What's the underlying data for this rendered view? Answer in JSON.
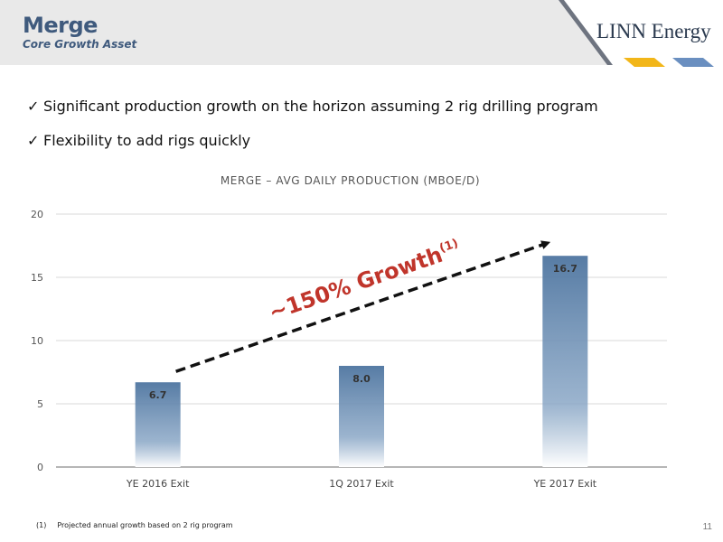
{
  "header": {
    "title": "Merge",
    "subtitle": "Core Growth Asset",
    "logo_text": "LINN Energy"
  },
  "bullets": [
    "Significant production growth on the horizon assuming 2 rig drilling program",
    "Flexibility to add rigs quickly"
  ],
  "icons": {
    "check": "✓",
    "check_name": "check-icon"
  },
  "chart_data": {
    "type": "bar",
    "title": "MERGE – AVG DAILY PRODUCTION (MBOE/D)",
    "categories": [
      "YE 2016 Exit",
      "1Q 2017 Exit",
      "YE 2017 Exit"
    ],
    "values": [
      6.7,
      8.0,
      16.7
    ],
    "value_labels": [
      "6.7",
      "8.0",
      "16.7"
    ],
    "ylim": [
      0,
      20
    ],
    "yticks": [
      0,
      5,
      10,
      15,
      20
    ],
    "grid": true,
    "bar_color": "#5b7fa6",
    "annotation": {
      "text": "~150% Growth",
      "superscript": "(1)",
      "color": "#c0352b"
    }
  },
  "footnote": {
    "marker": "(1)",
    "text": "Projected annual growth based on 2 rig program"
  },
  "page_number": "11",
  "colors": {
    "brand": "#3f5a7d",
    "accent_yellow": "#f2b619",
    "accent_blue": "#6a8fc0",
    "annotation_red": "#c0352b"
  }
}
